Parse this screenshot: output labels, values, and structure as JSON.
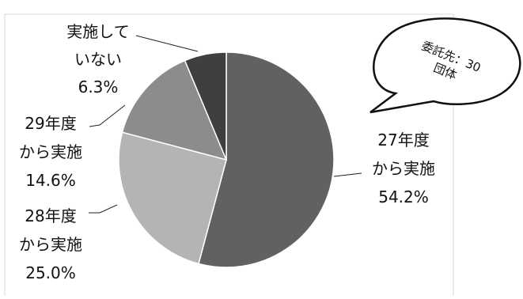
{
  "chart_data": {
    "type": "pie",
    "slices": [
      {
        "label_lines": [
          "27年度",
          "から実施"
        ],
        "percent_label": "54.2%",
        "value": 54.2,
        "color": "#616161"
      },
      {
        "label_lines": [
          "28年度",
          "から実施"
        ],
        "percent_label": "25.0%",
        "value": 25.0,
        "color": "#b4b4b4"
      },
      {
        "label_lines": [
          "29年度",
          "から実施"
        ],
        "percent_label": "14.6%",
        "value": 14.6,
        "color": "#8c8c8c"
      },
      {
        "label_lines": [
          "実施して",
          "いない"
        ],
        "percent_label": "6.3%",
        "value": 6.3,
        "color": "#3f3f3f"
      }
    ],
    "callout": {
      "lines": [
        "委託先：30",
        "団体"
      ]
    },
    "legend": "none",
    "start_angle": "12 o'clock",
    "direction": "clockwise"
  }
}
